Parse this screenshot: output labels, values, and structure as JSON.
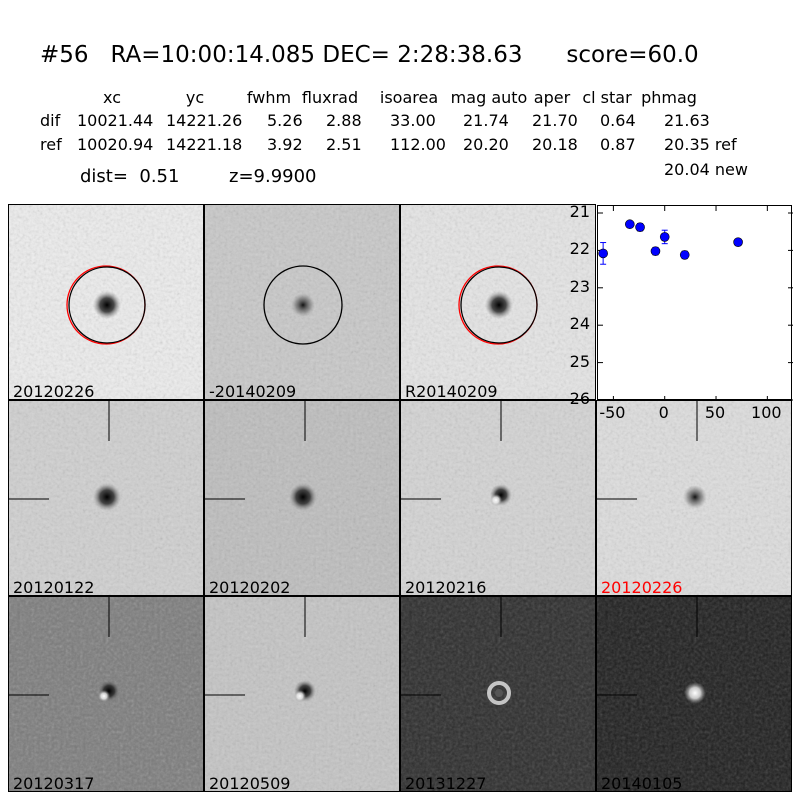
{
  "title": {
    "id": "#56",
    "ra": "RA=10:00:14.085",
    "dec": "DEC= 2:28:38.63",
    "score": "score=60.0"
  },
  "table": {
    "headers": [
      "xc",
      "yc",
      "fwhm",
      "fluxrad",
      "isoarea",
      "mag auto",
      "aper",
      "cl star",
      "phmag"
    ],
    "rows": [
      {
        "label": "dif",
        "values": [
          "10021.44",
          "14221.26",
          "5.26",
          "2.88",
          "33.00",
          "21.74",
          "21.70",
          "0.64",
          "21.63"
        ]
      },
      {
        "label": "ref",
        "values": [
          "10020.94",
          "14221.18",
          "3.92",
          "2.51",
          "112.00",
          "20.20",
          "20.18",
          "0.87",
          "20.35 ref"
        ]
      }
    ],
    "extra": "20.04 new"
  },
  "dist": "dist=  0.51",
  "z": "z=9.9900",
  "panels": [
    {
      "label": "20120226",
      "bg": "#eeeeee",
      "star": "dark",
      "circles": [
        "#ff0000",
        "#000000"
      ]
    },
    {
      "label": "-20140209",
      "bg": "#c8c8c8",
      "star": "dark-faint",
      "circles": [
        "#000000"
      ]
    },
    {
      "label": "R20140209",
      "bg": "#e6e6e6",
      "star": "dark",
      "circles": [
        "#ff0000",
        "#000000"
      ]
    },
    {
      "label": "20120122",
      "bg": "#d0d0d0",
      "star": "dark"
    },
    {
      "label": "20120202",
      "bg": "#bdbdbd",
      "star": "dark"
    },
    {
      "label": "20120216",
      "bg": "#d4d4d4",
      "star": "dipole"
    },
    {
      "label": "20120226",
      "bg": "#dedede",
      "star": "dark-faint",
      "label_color": "#ff0000"
    },
    {
      "label": "20120317",
      "bg": "#7a7a7a",
      "star": "dipole"
    },
    {
      "label": "20120509",
      "bg": "#c4c4c4",
      "star": "dipole"
    },
    {
      "label": "20131227",
      "bg": "#2c2c2c",
      "star": "ring"
    },
    {
      "label": "20140105",
      "bg": "#1e1e1e",
      "star": "bright"
    }
  ],
  "chart_data": {
    "type": "scatter",
    "x": [
      -60,
      -34,
      -24,
      -9,
      0,
      19.5,
      71.5
    ],
    "y": [
      22.08,
      21.3,
      21.38,
      22.02,
      21.64,
      22.12,
      21.78
    ],
    "yerr": [
      0.29,
      0.05,
      0.1,
      0.1,
      0.18,
      0.1,
      0.08
    ],
    "xlim": [
      -65,
      125
    ],
    "ylim": [
      26,
      21
    ],
    "y_inverted": true,
    "xticks": [
      "-50",
      "0",
      "50",
      "100"
    ],
    "yticks": [
      "21",
      "22",
      "23",
      "24",
      "25",
      "26"
    ],
    "marker_color": "#0000ff"
  }
}
